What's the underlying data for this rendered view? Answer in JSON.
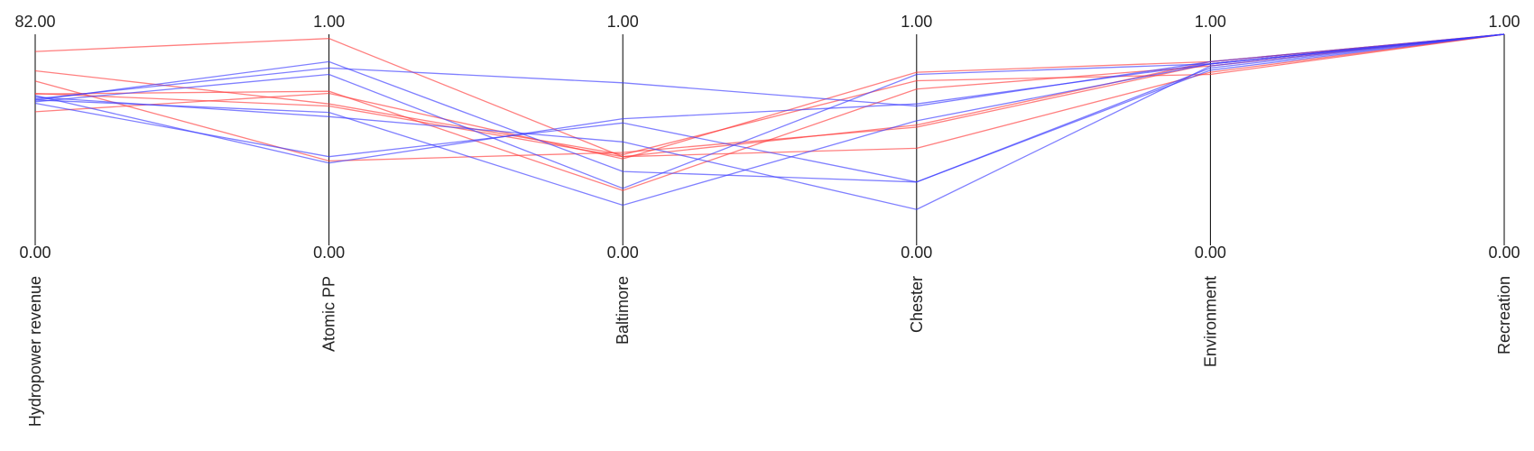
{
  "chart_data": {
    "type": "parallel-coordinates",
    "axes": [
      {
        "name": "Hydropower revenue",
        "min": 0,
        "max": 82,
        "min_label": "0.00",
        "max_label": "82.00"
      },
      {
        "name": "Atomic PP",
        "min": 0,
        "max": 1,
        "min_label": "0.00",
        "max_label": "1.00"
      },
      {
        "name": "Baltimore",
        "min": 0,
        "max": 1,
        "min_label": "0.00",
        "max_label": "1.00"
      },
      {
        "name": "Chester",
        "min": 0,
        "max": 1,
        "min_label": "0.00",
        "max_label": "1.00"
      },
      {
        "name": "Environment",
        "min": 0,
        "max": 1,
        "min_label": "0.00",
        "max_label": "1.00"
      },
      {
        "name": "Recreation",
        "min": 0,
        "max": 1,
        "min_label": "0.00",
        "max_label": "1.00"
      }
    ],
    "series": [
      {
        "color": "#ff3b3b",
        "values": [
          75.3,
          0.98,
          0.42,
          0.46,
          0.82,
          1.0
        ]
      },
      {
        "color": "#ff3b3b",
        "values": [
          67.8,
          0.67,
          0.43,
          0.78,
          0.81,
          1.0
        ]
      },
      {
        "color": "#ff3b3b",
        "values": [
          58.8,
          0.73,
          0.26,
          0.74,
          0.85,
          1.0
        ]
      },
      {
        "color": "#ff3b3b",
        "values": [
          51.9,
          0.72,
          0.41,
          0.82,
          0.87,
          1.0
        ]
      },
      {
        "color": "#ff3b3b",
        "values": [
          63.8,
          0.4,
          0.44,
          0.56,
          0.86,
          1.0
        ]
      },
      {
        "color": "#ff3b3b",
        "values": [
          59.0,
          0.66,
          0.42,
          0.57,
          0.87,
          1.0
        ]
      },
      {
        "color": "#3b3bff",
        "values": [
          58.2,
          0.39,
          0.6,
          0.67,
          0.86,
          1.0
        ]
      },
      {
        "color": "#3b3bff",
        "values": [
          57.6,
          0.61,
          0.49,
          0.17,
          0.85,
          1.0
        ]
      },
      {
        "color": "#3b3bff",
        "values": [
          56.4,
          0.87,
          0.35,
          0.3,
          0.83,
          1.0
        ]
      },
      {
        "color": "#3b3bff",
        "values": [
          55.8,
          0.81,
          0.27,
          0.81,
          0.86,
          1.0
        ]
      },
      {
        "color": "#3b3bff",
        "values": [
          56.9,
          0.84,
          0.77,
          0.66,
          0.87,
          1.0
        ]
      },
      {
        "color": "#3b3bff",
        "values": [
          56.5,
          0.63,
          0.19,
          0.59,
          0.86,
          1.0
        ]
      },
      {
        "color": "#3b3bff",
        "values": [
          55.2,
          0.42,
          0.58,
          0.3,
          0.84,
          1.0
        ]
      }
    ],
    "grid": false,
    "legend": "none"
  }
}
